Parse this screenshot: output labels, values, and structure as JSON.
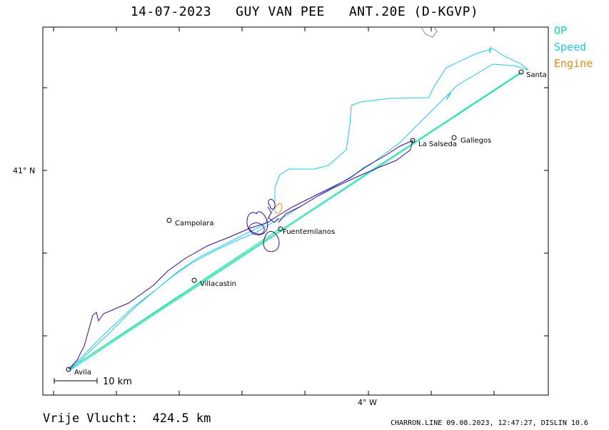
{
  "title": "14-07-2023   GUY VAN PEE   ANT.20E (D-KGVP)",
  "legend": [
    {
      "label": "OP",
      "color": "#00e0a0"
    },
    {
      "label": "Speed",
      "color": "#20c8e8"
    },
    {
      "label": "Engine",
      "color": "#e08a20"
    }
  ],
  "axes": {
    "y_label": "41° N",
    "x_label": "4° W",
    "scale_bar": "10 km"
  },
  "places": [
    {
      "name": "Santa"
    },
    {
      "name": "Gallegos"
    },
    {
      "name": "La Salseda"
    },
    {
      "name": "Campolara"
    },
    {
      "name": "Fuentemilanos"
    },
    {
      "name": "Villacastin"
    },
    {
      "name": "Avila"
    }
  ],
  "footer": {
    "distance": "Vrije Vlucht:  424.5 km",
    "credits": "CHARRON.LINE 09.08.2023, 12:47:27, DISLIN 10.6"
  },
  "colors": {
    "track_purple": "#3a0a8c",
    "track_cyan": "#20c8e8",
    "op_green": "#00e0a0",
    "engine_orange": "#e08a20"
  }
}
